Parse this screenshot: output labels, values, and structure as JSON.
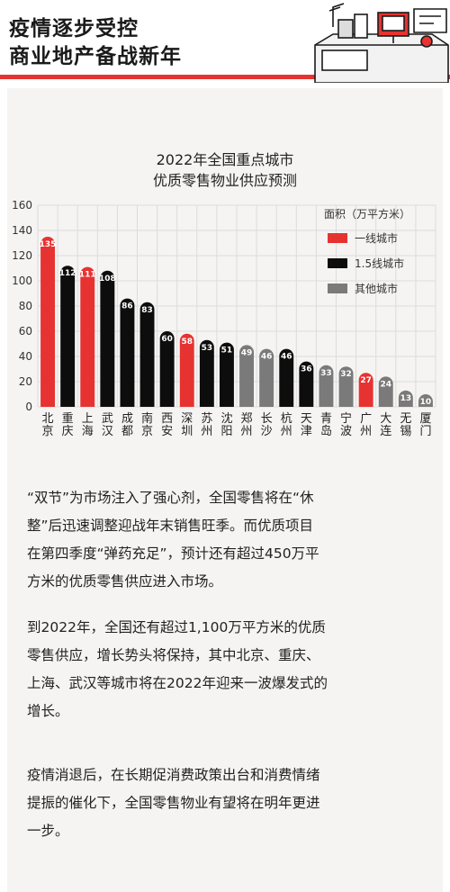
{
  "header": {
    "title_line1": "疫情逐步受控",
    "title_line2": "商业地产备战新年"
  },
  "colors": {
    "accent": "#e63331",
    "tier1": "#e63331",
    "tier15": "#0d0d0d",
    "other": "#7a7a7a",
    "background": "#f5f4f3"
  },
  "chart_data": {
    "type": "bar",
    "title_line1": "2022年全国重点城市",
    "title_line2": "优质零售物业供应预测",
    "unit_label": "面积（万平方米）",
    "ylim": [
      0,
      160
    ],
    "yticks": [
      0,
      20,
      40,
      60,
      80,
      100,
      120,
      140,
      160
    ],
    "grid": true,
    "legend_placement": "top-right",
    "legend": [
      {
        "key": "tier1",
        "label": "一线城市",
        "color": "#e63331"
      },
      {
        "key": "tier15",
        "label": "1.5线城市",
        "color": "#0d0d0d"
      },
      {
        "key": "other",
        "label": "其他城市",
        "color": "#7a7a7a"
      }
    ],
    "categories": [
      "北京",
      "重庆",
      "上海",
      "武汉",
      "成都",
      "南京",
      "西安",
      "深圳",
      "苏州",
      "沈阳",
      "郑州",
      "长沙",
      "杭州",
      "天津",
      "青岛",
      "宁波",
      "广州",
      "大连",
      "无锡",
      "厦门"
    ],
    "values": [
      135,
      112,
      111,
      108,
      86,
      83,
      60,
      58,
      53,
      51,
      49,
      46,
      46,
      36,
      33,
      32,
      27,
      24,
      13,
      10
    ],
    "tiers": [
      "tier1",
      "tier15",
      "tier1",
      "tier15",
      "tier15",
      "tier15",
      "tier15",
      "tier1",
      "tier15",
      "tier15",
      "other",
      "other",
      "tier15",
      "tier15",
      "other",
      "other",
      "tier1",
      "other",
      "other",
      "other"
    ]
  },
  "paragraphs": [
    [
      "“双节”为市场注入了强心剂，全国零售将在“休",
      "整”后迅速调整迎战年末销售旺季。而优质项目",
      "在第四季度“弹药充足”，预计还有超过450万平",
      "方米的优质零售供应进入市场。"
    ],
    [
      "到2022年，全国还有超过1,100万平方米的优质",
      "零售供应，增长势头将保持，其中北京、重庆、",
      "上海、武汉等城市将在2022年迎来一波爆发式的",
      "增长。"
    ],
    [
      "疫情消退后，在长期促消费政策出台和消费情绪",
      "提振的催化下，全国零售物业有望将在明年更进",
      "一步。"
    ]
  ]
}
